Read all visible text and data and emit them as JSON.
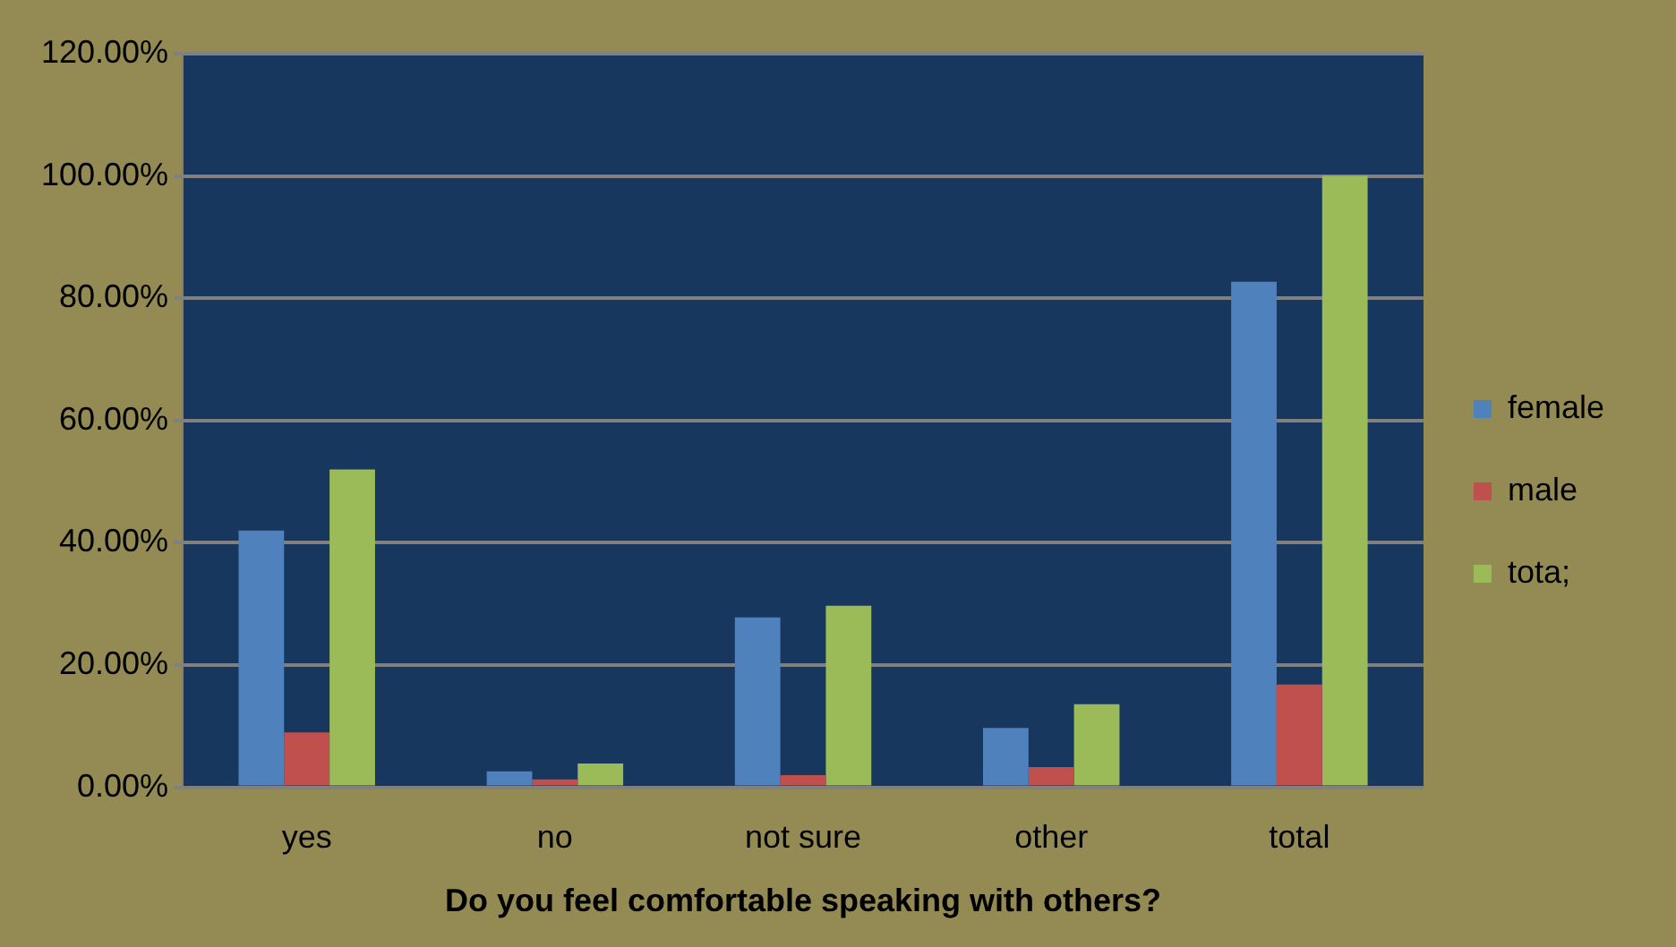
{
  "chart_data": {
    "type": "bar",
    "xlabel": "Do you feel comfortable speaking with others?",
    "categories": [
      "yes",
      "no",
      "not sure",
      "other",
      "total"
    ],
    "series": [
      {
        "name": "female",
        "color": "#4f81bd",
        "values": [
          42,
          2.6,
          27.8,
          9.7,
          82.7
        ]
      },
      {
        "name": "male",
        "color": "#c0504d",
        "values": [
          9,
          1.3,
          2,
          3.3,
          16.8
        ]
      },
      {
        "name": "tota;",
        "color": "#9bbb59",
        "values": [
          52,
          3.9,
          29.7,
          13.6,
          100
        ]
      }
    ],
    "ylim": [
      0,
      120
    ],
    "yticks": [
      {
        "value": 0,
        "label": "0.00%"
      },
      {
        "value": 20,
        "label": "20.00%"
      },
      {
        "value": 40,
        "label": "40.00%"
      },
      {
        "value": 60,
        "label": "60.00%"
      },
      {
        "value": 80,
        "label": "80.00%"
      },
      {
        "value": 100,
        "label": "100.00%"
      },
      {
        "value": 120,
        "label": "120.00%"
      }
    ],
    "grid": "y",
    "legend": "right"
  }
}
